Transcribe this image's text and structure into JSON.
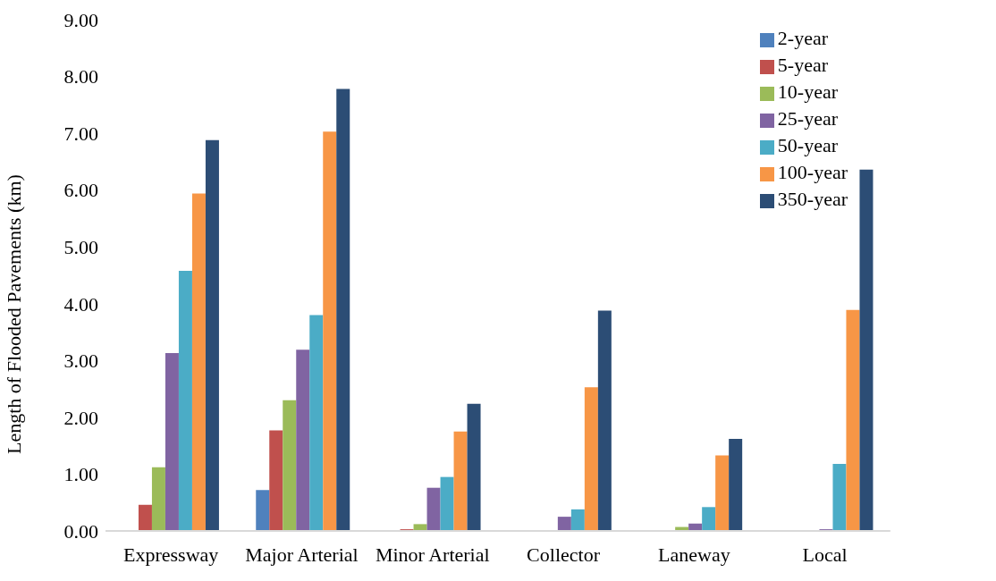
{
  "chart_data": {
    "type": "bar",
    "ylabel": "Length of Flooded Pavements (km)",
    "categories": [
      "Expressway",
      "Major Arterial",
      "Minor Arterial",
      "Collector",
      "Laneway",
      "Local"
    ],
    "series": [
      {
        "name": "2-year",
        "color": "#4f81bd",
        "values": [
          0,
          0.72,
          0,
          0,
          0,
          0
        ]
      },
      {
        "name": "5-year",
        "color": "#c0504d",
        "values": [
          0.46,
          1.77,
          0.03,
          0,
          0,
          0
        ]
      },
      {
        "name": "10-year",
        "color": "#9bbb59",
        "values": [
          1.12,
          2.3,
          0.12,
          0,
          0.07,
          0
        ]
      },
      {
        "name": "25-year",
        "color": "#8064a2",
        "values": [
          3.13,
          3.19,
          0.76,
          0.25,
          0.13,
          0.03
        ]
      },
      {
        "name": "50-year",
        "color": "#4bacc6",
        "values": [
          4.58,
          3.8,
          0.95,
          0.38,
          0.42,
          1.18
        ]
      },
      {
        "name": "100-year",
        "color": "#f79646",
        "values": [
          5.94,
          7.03,
          1.75,
          2.53,
          1.33,
          3.89
        ]
      },
      {
        "name": "350-year",
        "color": "#2c4d75",
        "values": [
          6.88,
          7.78,
          2.24,
          3.88,
          1.62,
          6.36
        ]
      }
    ],
    "ylim": [
      0,
      9
    ],
    "yticks": [
      {
        "value": 0,
        "label": "0.00"
      },
      {
        "value": 1,
        "label": "1.00"
      },
      {
        "value": 2,
        "label": "2.00"
      },
      {
        "value": 3,
        "label": "3.00"
      },
      {
        "value": 4,
        "label": "4.00"
      },
      {
        "value": 5,
        "label": "5.00"
      },
      {
        "value": 6,
        "label": "6.00"
      },
      {
        "value": 7,
        "label": "7.00"
      },
      {
        "value": 8,
        "label": "8.00"
      },
      {
        "value": 9,
        "label": "9.00"
      }
    ],
    "grid": false,
    "legend": "top right"
  }
}
